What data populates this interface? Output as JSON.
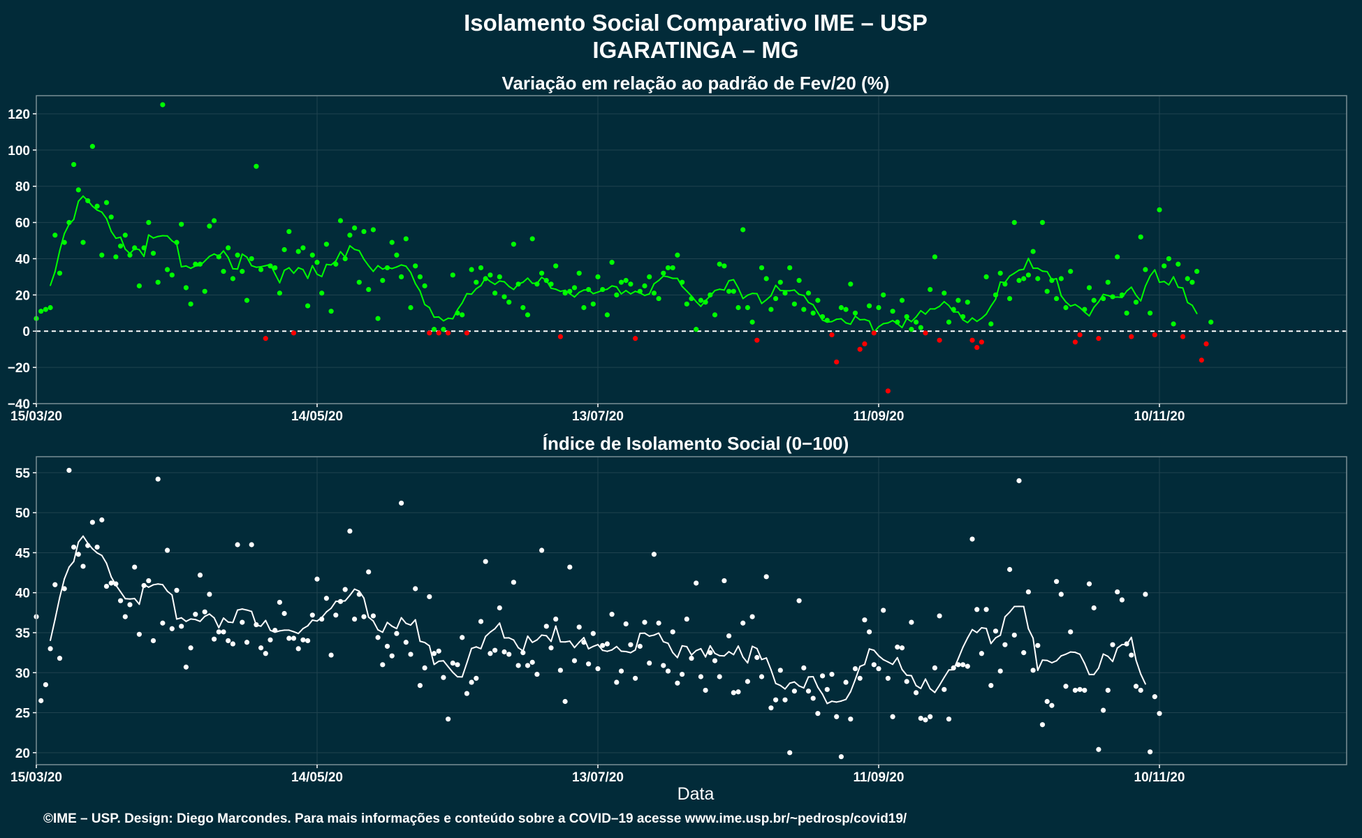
{
  "figure": {
    "title_line1": "Isolamento Social Comparativo IME – USP",
    "title_line2": "IGARATINGA – MG",
    "xlabel": "Data",
    "footer": "©IME – USP. Design: Diego Marcondes. Para mais informações e conteúdo sobre a COVID–19 acesse www.ime.usp.br/~pedrosp/covid19/"
  },
  "colors": {
    "background": "#022b39",
    "panel_border": "#7a8f96",
    "grid": "#20434f",
    "positive": "#00ff00",
    "negative": "#ff0000",
    "index_points": "#ffffff"
  },
  "chart_data": [
    {
      "type": "scatter",
      "title": "Variação em relação ao padrão de Fev/20 (%)",
      "xlabel": "",
      "ylabel": "",
      "x_type": "date",
      "x_start": "2020-03-15",
      "x_range": [
        "2020-03-15",
        "2020-12-20"
      ],
      "x_ticks": [
        "15/03/20",
        "14/05/20",
        "13/07/20",
        "11/09/20",
        "10/11/20"
      ],
      "ylim": [
        -40,
        130
      ],
      "y_ticks": [
        -40,
        -20,
        0,
        20,
        40,
        60,
        80,
        100,
        120
      ],
      "y_tick_labels": [
        "−40",
        "−20",
        "0",
        "20",
        "40",
        "60",
        "80",
        "100",
        "120"
      ],
      "reference_line": 0,
      "grid": true,
      "series": [
        {
          "style": "points colored green when ≥ 0, red when < 0",
          "values": [
            7,
            11,
            12,
            13,
            53,
            32,
            49,
            60,
            92,
            78,
            49,
            72,
            102,
            69,
            42,
            71,
            63,
            41,
            47,
            53,
            42,
            46,
            25,
            46,
            60,
            43,
            27,
            125,
            34,
            31,
            49,
            59,
            24,
            15,
            37,
            37,
            22,
            58,
            61,
            41,
            33,
            46,
            29,
            42,
            33,
            17,
            40,
            91,
            34,
            -4,
            36,
            35,
            21,
            45,
            55,
            -1,
            44,
            46,
            14,
            42,
            38,
            21,
            48,
            11,
            37,
            61,
            40,
            53,
            57,
            27,
            55,
            23,
            56,
            7,
            28,
            35,
            49,
            42,
            30,
            51,
            13,
            36,
            30,
            25,
            -1,
            1,
            -1,
            1,
            -1,
            31,
            10,
            9,
            -1,
            34,
            27,
            35,
            29,
            31,
            21,
            30,
            19,
            16,
            48,
            26,
            13,
            9,
            51,
            26,
            32,
            28,
            26,
            36,
            -3,
            21,
            22,
            24,
            32,
            13,
            23,
            15,
            30,
            23,
            9,
            38,
            20,
            27,
            28,
            26,
            -4,
            22,
            25,
            30,
            21,
            18,
            32,
            35,
            35,
            42,
            27,
            15,
            18,
            1,
            17,
            16,
            20,
            9,
            37,
            36,
            22,
            22,
            13,
            56,
            13,
            5,
            -5,
            35,
            29,
            12,
            18,
            27,
            21,
            35,
            15,
            28,
            12,
            21,
            10,
            17,
            8,
            6,
            -2,
            -17,
            13,
            12,
            26,
            10,
            -10,
            -7,
            14,
            -1,
            13,
            20,
            -33,
            11,
            5,
            17,
            8,
            1,
            5,
            2,
            -1,
            23,
            41,
            -5,
            21,
            5,
            12,
            17,
            8,
            16,
            -5,
            -9,
            -6,
            30,
            4,
            20,
            32,
            26,
            18,
            60,
            28,
            29,
            31,
            44,
            29,
            60,
            22,
            28,
            18,
            29,
            13,
            33,
            -6,
            -2,
            12,
            24,
            17,
            -4,
            18,
            27,
            19,
            41,
            20,
            10,
            -3,
            16,
            52,
            34,
            10,
            -2,
            67,
            36,
            40,
            4,
            37,
            -3,
            29,
            27,
            33,
            -16,
            -7,
            5
          ],
          "moving_average_line": "7-day centered average, green above 0, red below 0"
        }
      ]
    },
    {
      "type": "scatter",
      "title": "Índice de Isolamento Social (0−100)",
      "xlabel": "Data",
      "ylabel": "",
      "x_type": "date",
      "x_start": "2020-03-15",
      "x_range": [
        "2020-03-15",
        "2020-12-20"
      ],
      "x_ticks": [
        "15/03/20",
        "14/05/20",
        "13/07/20",
        "11/09/20",
        "10/11/20"
      ],
      "ylim": [
        18.5,
        57
      ],
      "y_ticks": [
        20,
        25,
        30,
        35,
        40,
        45,
        50,
        55
      ],
      "grid": true,
      "series": [
        {
          "style": "white points with white 7-day moving average line",
          "values": [
            37,
            26.5,
            28.5,
            33,
            41,
            31.8,
            40.5,
            55.3,
            45.7,
            44.8,
            43.3,
            45.9,
            48.8,
            45.7,
            49.1,
            40.8,
            41.2,
            41.1,
            39,
            37,
            38.5,
            43.2,
            34.8,
            40.9,
            41.5,
            34,
            54.2,
            36.2,
            45.3,
            35.5,
            40.3,
            35.8,
            30.7,
            33.1,
            37.3,
            42.2,
            37.6,
            39.8,
            34.2,
            35.1,
            35.1,
            34,
            33.6,
            46,
            36.3,
            33.8,
            46,
            36,
            33.1,
            32.4,
            34.1,
            35.3,
            38.8,
            37.4,
            34.3,
            34.3,
            33,
            34.1,
            34,
            37.2,
            41.7,
            36.7,
            39.3,
            32.2,
            37.2,
            38.9,
            40.4,
            47.7,
            36.7,
            39.8,
            37,
            42.6,
            37.1,
            34.4,
            31,
            33.3,
            32.1,
            34.9,
            51.2,
            33.8,
            32.3,
            40.5,
            28.4,
            30.6,
            39.5,
            32.4,
            32.7,
            29.4,
            24.2,
            31.2,
            31,
            34.4,
            27.4,
            28.8,
            29.3,
            36.4,
            43.9,
            32.4,
            32.8,
            38.1,
            32.6,
            32.3,
            41.3,
            30.9,
            32.5,
            30.9,
            31.3,
            29.8,
            45.3,
            35.8,
            33.1,
            36.7,
            30.3,
            26.4,
            43.2,
            31.5,
            35.7,
            33.8,
            31.1,
            34.9,
            30.5,
            33.4,
            33.6,
            37.3,
            28.8,
            30.2,
            36.1,
            33.5,
            29.3,
            33.3,
            36.3,
            31.2,
            44.8,
            36.2,
            30.9,
            30.2,
            35.1,
            28.7,
            29.8,
            36.7,
            31.8,
            41.2,
            29.5,
            27.8,
            32.5,
            31.5,
            29.5,
            41.5,
            34.6,
            27.5,
            27.6,
            36.2,
            28.9,
            37,
            31.9,
            29.5,
            42,
            25.6,
            26.6,
            30.3,
            26.6,
            20,
            27.7,
            39,
            30.6,
            27.7,
            26.8,
            24.9,
            29.6,
            27.9,
            29.8,
            24.5,
            19.5,
            28.8,
            24.2,
            30.5,
            29.3,
            36.6,
            35.1,
            31,
            30.5,
            37.8,
            29.3,
            24.5,
            33.2,
            33.1,
            28.9,
            36.3,
            27.5,
            24.3,
            24.1,
            24.5,
            30.6,
            37.1,
            27.9,
            24.2,
            30.6,
            31,
            31,
            30.8,
            46.7,
            37.9,
            32.4,
            37.9,
            28.4,
            35.2,
            30.2,
            33.5,
            42.9,
            34.7,
            54,
            32.5,
            40.1,
            30.3,
            33.4,
            23.5,
            26.4,
            25.9,
            41.4,
            39.8,
            28.3,
            35.1,
            27.8,
            27.9,
            27.8,
            41.1,
            38.1,
            20.4,
            25.3,
            27.8,
            33.5,
            40.1,
            39.1,
            33.6,
            32.2,
            28.3,
            27.8,
            39.8,
            20.1,
            27,
            24.9
          ]
        }
      ]
    }
  ]
}
